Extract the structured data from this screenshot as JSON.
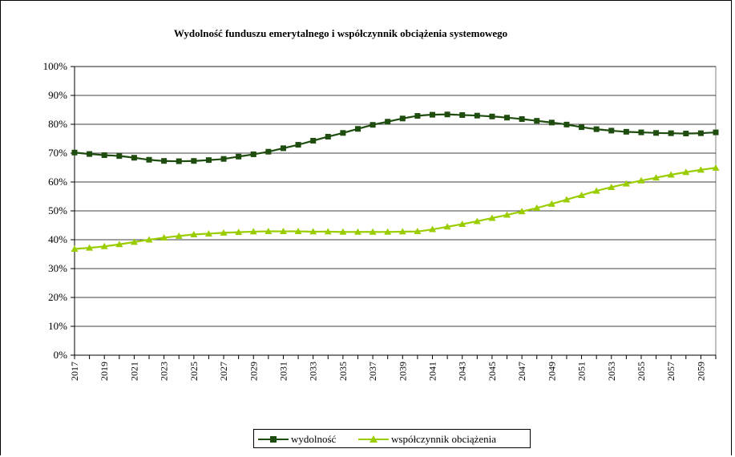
{
  "chart_data": {
    "type": "line",
    "title": "Wydolność funduszu emerytalnego i współczynnik obciążenia systemowego",
    "x": [
      2017,
      2018,
      2019,
      2020,
      2021,
      2022,
      2023,
      2024,
      2025,
      2026,
      2027,
      2028,
      2029,
      2030,
      2031,
      2032,
      2033,
      2034,
      2035,
      2036,
      2037,
      2038,
      2039,
      2040,
      2041,
      2042,
      2043,
      2044,
      2045,
      2046,
      2047,
      2048,
      2049,
      2050,
      2051,
      2052,
      2053,
      2054,
      2055,
      2056,
      2057,
      2058,
      2059,
      2060
    ],
    "x_tick_labels": [
      "2017",
      "2019",
      "2021",
      "2023",
      "2025",
      "2027",
      "2029",
      "2031",
      "2033",
      "2035",
      "2037",
      "2039",
      "2041",
      "2043",
      "2045",
      "2047",
      "2049",
      "2051",
      "2053",
      "2055",
      "2057",
      "2059"
    ],
    "y_tick_labels": [
      "0%",
      "10%",
      "20%",
      "30%",
      "40%",
      "50%",
      "60%",
      "70%",
      "80%",
      "90%",
      "100%"
    ],
    "ylim": [
      0,
      100
    ],
    "grid": "horizontal",
    "legend_position": "bottom",
    "series": [
      {
        "name": "wydolność",
        "color": "#1f4d0f",
        "marker": "square",
        "values": [
          70.2,
          69.7,
          69.3,
          69.0,
          68.4,
          67.7,
          67.3,
          67.2,
          67.3,
          67.6,
          68.0,
          68.8,
          69.6,
          70.5,
          71.7,
          72.9,
          74.3,
          75.7,
          77.0,
          78.4,
          79.8,
          80.9,
          82.0,
          82.9,
          83.3,
          83.4,
          83.2,
          83.0,
          82.7,
          82.3,
          81.8,
          81.2,
          80.6,
          79.9,
          79.0,
          78.3,
          77.8,
          77.4,
          77.2,
          77.0,
          76.9,
          76.8,
          76.9,
          77.2
        ]
      },
      {
        "name": "współczynnik obciążenia",
        "color": "#9acd00",
        "marker": "triangle",
        "values": [
          36.8,
          37.2,
          37.7,
          38.4,
          39.2,
          40.0,
          40.7,
          41.3,
          41.8,
          42.1,
          42.4,
          42.6,
          42.8,
          42.9,
          42.9,
          42.9,
          42.8,
          42.8,
          42.7,
          42.7,
          42.7,
          42.7,
          42.8,
          42.9,
          43.6,
          44.5,
          45.4,
          46.4,
          47.5,
          48.6,
          49.8,
          51.0,
          52.4,
          53.9,
          55.4,
          56.9,
          58.2,
          59.4,
          60.5,
          61.5,
          62.5,
          63.4,
          64.2,
          64.9
        ]
      }
    ]
  }
}
